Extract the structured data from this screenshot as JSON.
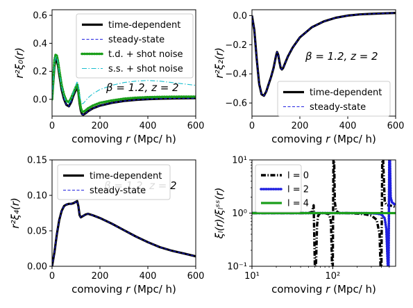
{
  "chart_data": [
    {
      "type": "line",
      "panel": "top-left",
      "xlabel_pre": "comoving ",
      "xlabel_var": "r",
      "xlabel_post": " (Mpc/ h)",
      "ylabel": "r²ξ₀(r)",
      "xlim": [
        0,
        600
      ],
      "ylim": [
        -0.12,
        0.64
      ],
      "xticks": [
        "0",
        "200",
        "400",
        "600"
      ],
      "yticks": [
        "0.0",
        "0.2",
        "0.4",
        "0.6"
      ],
      "annotation": "β = 1.2,    z = 2",
      "legend_position": "top-right",
      "series": [
        {
          "name": "time-dependent",
          "color": "#000000",
          "style": "solid",
          "x": [
            0,
            5,
            10,
            15,
            20,
            25,
            30,
            40,
            50,
            60,
            70,
            80,
            90,
            100,
            105,
            110,
            115,
            120,
            125,
            130,
            140,
            150,
            170,
            200,
            250,
            300,
            350,
            400,
            450,
            500,
            550,
            600
          ],
          "y": [
            0.0,
            0.12,
            0.24,
            0.29,
            0.28,
            0.24,
            0.18,
            0.07,
            0.0,
            -0.04,
            -0.05,
            -0.02,
            0.03,
            0.07,
            0.09,
            0.05,
            -0.03,
            -0.08,
            -0.105,
            -0.11,
            -0.1,
            -0.085,
            -0.065,
            -0.045,
            -0.025,
            -0.012,
            -0.004,
            0.001,
            0.004,
            0.006,
            0.007,
            0.008
          ]
        },
        {
          "name": "steady-state",
          "color": "#1f1fe0",
          "style": "dashed",
          "x": [
            0,
            5,
            10,
            15,
            20,
            25,
            30,
            40,
            50,
            60,
            70,
            80,
            90,
            100,
            105,
            110,
            115,
            120,
            125,
            130,
            140,
            150,
            170,
            200,
            250,
            300,
            350,
            400,
            450,
            500,
            550,
            600
          ],
          "y": [
            0.0,
            0.12,
            0.24,
            0.29,
            0.28,
            0.24,
            0.18,
            0.07,
            0.0,
            -0.04,
            -0.05,
            -0.02,
            0.03,
            0.07,
            0.09,
            0.05,
            -0.03,
            -0.08,
            -0.105,
            -0.11,
            -0.1,
            -0.085,
            -0.065,
            -0.045,
            -0.025,
            -0.012,
            -0.004,
            0.001,
            0.004,
            0.006,
            0.007,
            0.008
          ]
        },
        {
          "name": "t.d. + shot noise",
          "color": "#1a9e1a",
          "style": "dotted",
          "x": [
            0,
            5,
            10,
            15,
            20,
            25,
            30,
            40,
            50,
            60,
            70,
            80,
            90,
            100,
            105,
            110,
            115,
            120,
            125,
            130,
            140,
            150,
            170,
            200,
            250,
            300,
            350,
            400,
            450,
            500,
            550,
            600
          ],
          "y": [
            0.0,
            0.14,
            0.28,
            0.32,
            0.31,
            0.27,
            0.21,
            0.1,
            0.03,
            -0.01,
            -0.02,
            0.01,
            0.05,
            0.09,
            0.11,
            0.07,
            -0.01,
            -0.06,
            -0.085,
            -0.09,
            -0.08,
            -0.065,
            -0.045,
            -0.025,
            -0.008,
            0.004,
            0.011,
            0.015,
            0.017,
            0.018,
            0.019,
            0.019
          ]
        },
        {
          "name": "s.s. + shot noise",
          "color": "#17becf",
          "style": "dashdot",
          "x": [
            0,
            5,
            10,
            15,
            20,
            25,
            30,
            40,
            50,
            60,
            70,
            80,
            90,
            100,
            105,
            110,
            115,
            120,
            125,
            130,
            140,
            150,
            170,
            200,
            250,
            300,
            350,
            400,
            450,
            500,
            550,
            600
          ],
          "y": [
            0.0,
            0.13,
            0.26,
            0.31,
            0.3,
            0.26,
            0.2,
            0.09,
            0.02,
            -0.02,
            -0.03,
            0.0,
            0.06,
            0.1,
            0.13,
            0.1,
            0.03,
            -0.01,
            -0.03,
            -0.03,
            -0.01,
            0.01,
            0.04,
            0.07,
            0.1,
            0.12,
            0.13,
            0.135,
            0.13,
            0.12,
            0.11,
            0.1
          ]
        }
      ]
    },
    {
      "type": "line",
      "panel": "top-right",
      "xlabel_pre": "comoving ",
      "xlabel_var": "r",
      "xlabel_post": " (Mpc/ h)",
      "ylabel": "r²ξ₂(r)",
      "xlim": [
        0,
        600
      ],
      "ylim": [
        -0.69,
        0.04
      ],
      "xticks": [
        "0",
        "200",
        "400",
        "600"
      ],
      "yticks": [
        "0.0",
        "−0.2",
        "−0.4",
        "−0.6"
      ],
      "annotation": "β = 1.2,    z = 2",
      "legend_position": "lower-right",
      "series": [
        {
          "name": "time-dependent",
          "color": "#000000",
          "style": "solid",
          "x": [
            0,
            10,
            20,
            30,
            40,
            50,
            60,
            70,
            80,
            90,
            100,
            105,
            110,
            115,
            120,
            125,
            130,
            140,
            150,
            170,
            200,
            250,
            300,
            350,
            400,
            450,
            500,
            550,
            600
          ],
          "y": [
            0.0,
            -0.1,
            -0.3,
            -0.47,
            -0.54,
            -0.55,
            -0.52,
            -0.47,
            -0.42,
            -0.36,
            -0.28,
            -0.25,
            -0.27,
            -0.32,
            -0.36,
            -0.37,
            -0.36,
            -0.32,
            -0.28,
            -0.22,
            -0.15,
            -0.08,
            -0.04,
            -0.015,
            0.0,
            0.008,
            0.012,
            0.015,
            0.018
          ]
        },
        {
          "name": "steady-state",
          "color": "#1f1fe0",
          "style": "dashed",
          "x": [
            0,
            10,
            20,
            30,
            40,
            50,
            60,
            70,
            80,
            90,
            100,
            105,
            110,
            115,
            120,
            125,
            130,
            140,
            150,
            170,
            200,
            250,
            300,
            350,
            400,
            450,
            500,
            550,
            600
          ],
          "y": [
            0.0,
            -0.1,
            -0.3,
            -0.47,
            -0.54,
            -0.55,
            -0.52,
            -0.47,
            -0.42,
            -0.36,
            -0.28,
            -0.25,
            -0.27,
            -0.32,
            -0.36,
            -0.37,
            -0.36,
            -0.32,
            -0.28,
            -0.22,
            -0.15,
            -0.08,
            -0.04,
            -0.015,
            0.0,
            0.008,
            0.012,
            0.015,
            0.018
          ]
        }
      ]
    },
    {
      "type": "line",
      "panel": "bottom-left",
      "xlabel_pre": "comoving ",
      "xlabel_var": "r",
      "xlabel_post": " (Mpc/ h)",
      "ylabel": "r²ξ₄(r)",
      "xlim": [
        0,
        600
      ],
      "ylim": [
        0,
        0.15
      ],
      "xticks": [
        "0",
        "200",
        "400",
        "600"
      ],
      "yticks": [
        "0.00",
        "0.05",
        "0.10",
        "0.15"
      ],
      "annotation": "β = 1.2,    z = 2",
      "legend_position": "top-left",
      "series": [
        {
          "name": "time-dependent",
          "color": "#000000",
          "style": "solid",
          "x": [
            0,
            10,
            20,
            30,
            40,
            50,
            60,
            70,
            80,
            90,
            100,
            105,
            110,
            115,
            120,
            130,
            140,
            150,
            170,
            200,
            250,
            300,
            350,
            400,
            450,
            500,
            550,
            600
          ],
          "y": [
            0.0,
            0.02,
            0.045,
            0.065,
            0.078,
            0.085,
            0.087,
            0.088,
            0.088,
            0.089,
            0.091,
            0.092,
            0.085,
            0.072,
            0.069,
            0.071,
            0.073,
            0.074,
            0.072,
            0.068,
            0.06,
            0.051,
            0.042,
            0.034,
            0.027,
            0.022,
            0.018,
            0.014
          ]
        },
        {
          "name": "steady-state",
          "color": "#1f1fe0",
          "style": "dashed",
          "x": [
            0,
            10,
            20,
            30,
            40,
            50,
            60,
            70,
            80,
            90,
            100,
            105,
            110,
            115,
            120,
            130,
            140,
            150,
            170,
            200,
            250,
            300,
            350,
            400,
            450,
            500,
            550,
            600
          ],
          "y": [
            0.0,
            0.02,
            0.045,
            0.065,
            0.078,
            0.085,
            0.087,
            0.088,
            0.088,
            0.089,
            0.091,
            0.092,
            0.085,
            0.072,
            0.069,
            0.071,
            0.073,
            0.074,
            0.072,
            0.068,
            0.06,
            0.051,
            0.042,
            0.034,
            0.027,
            0.022,
            0.018,
            0.014
          ]
        }
      ]
    },
    {
      "type": "line",
      "panel": "bottom-right",
      "scale": "log-log",
      "xlabel_pre": "comoving ",
      "xlabel_var": "r",
      "xlabel_post": " (Mpc/ h)",
      "ylabel": "ξₗ(r)/ξₗˢˢ(r)",
      "xlim": [
        10,
        600
      ],
      "ylim": [
        0.1,
        10
      ],
      "xticks": [
        "10¹",
        "10²"
      ],
      "yticks": [
        "10⁻¹",
        "10⁰",
        "10¹"
      ],
      "legend_position": "top-left",
      "series": [
        {
          "name": "l = 0",
          "color": "#000000",
          "style": "dashdot",
          "x": [
            10,
            20,
            30,
            40,
            50,
            55,
            58,
            60,
            62,
            64,
            66,
            70,
            80,
            90,
            95,
            98,
            100,
            102,
            104,
            106,
            110,
            120,
            150,
            200,
            250,
            300,
            350,
            380,
            390,
            400,
            410,
            420,
            440,
            470,
            500,
            550,
            600
          ],
          "y": [
            1.0,
            1.0,
            1.0,
            1.0,
            1.0,
            1.05,
            1.4,
            0.1,
            0.1,
            0.6,
            0.9,
            1.0,
            1.0,
            0.95,
            0.7,
            0.1,
            0.1,
            10,
            10,
            1.6,
            1.1,
            1.0,
            1.0,
            0.98,
            0.95,
            0.9,
            0.75,
            0.4,
            0.1,
            0.1,
            10,
            10,
            1.6,
            1.4,
            1.4,
            1.35,
            1.3
          ]
        },
        {
          "name": "l = 2",
          "color": "#1f1fe0",
          "style": "dotted",
          "x": [
            10,
            50,
            100,
            150,
            200,
            250,
            300,
            350,
            400,
            440,
            460,
            480,
            490,
            500,
            510,
            520,
            540,
            570,
            600
          ],
          "y": [
            1.0,
            1.0,
            1.0,
            1.0,
            1.0,
            1.0,
            0.99,
            0.98,
            0.95,
            0.8,
            0.5,
            0.1,
            0.1,
            10,
            10,
            2.0,
            1.6,
            1.5,
            1.4
          ]
        },
        {
          "name": "l = 4",
          "color": "#1a9e1a",
          "style": "solid",
          "x": [
            10,
            50,
            100,
            200,
            300,
            400,
            500,
            600
          ],
          "y": [
            1.0,
            1.0,
            1.0,
            1.0,
            1.0,
            1.0,
            1.0,
            1.0
          ]
        }
      ]
    }
  ]
}
